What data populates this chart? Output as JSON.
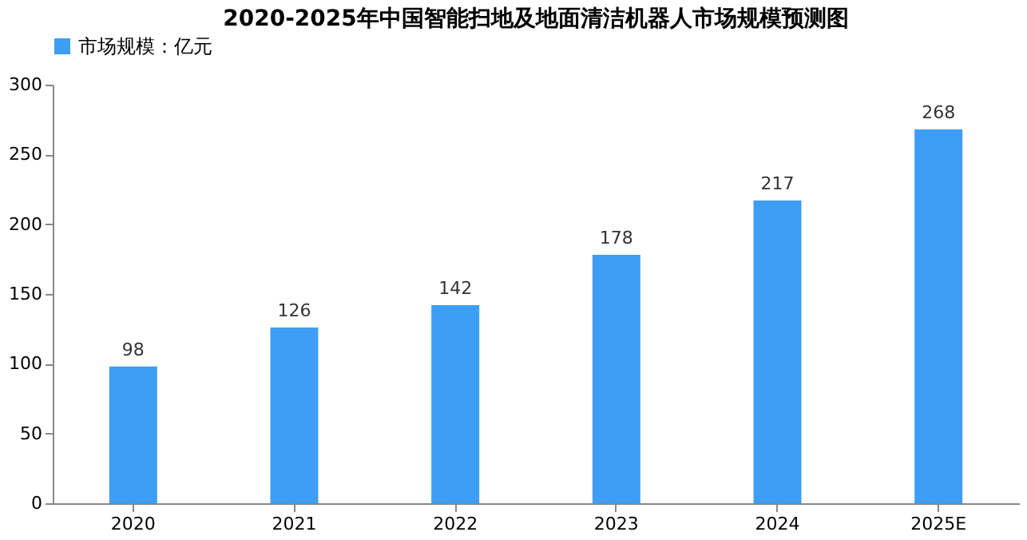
{
  "chart_data": {
    "type": "bar",
    "title": "2020-2025年中国智能扫地及地面清洁机器人市场规模预测图",
    "categories": [
      "2020",
      "2021",
      "2022",
      "2023",
      "2024",
      "2025E"
    ],
    "series": [
      {
        "name": "市场规模：亿元",
        "color": "#3e9ef5",
        "values": [
          98,
          126,
          142,
          178,
          217,
          268
        ]
      }
    ],
    "ylim": [
      0,
      300
    ],
    "yticks": [
      0,
      50,
      100,
      150,
      200,
      250,
      300
    ],
    "grid": false,
    "legend": "top",
    "data_labels": true
  }
}
